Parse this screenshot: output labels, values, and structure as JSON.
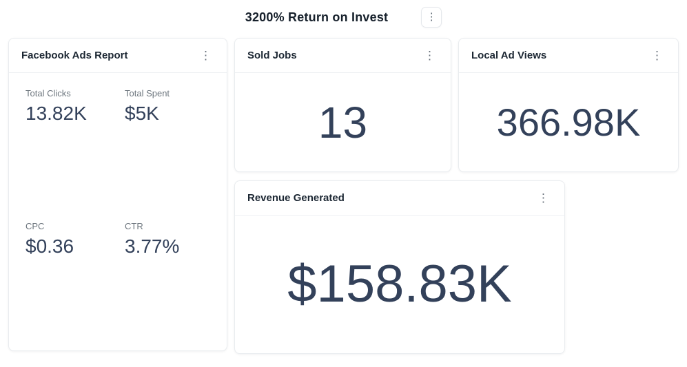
{
  "header": {
    "title": "3200% Return on Invest"
  },
  "icons": {
    "kebab": "⋮"
  },
  "cards": {
    "facebook": {
      "title": "Facebook Ads Report",
      "metrics": [
        {
          "label": "Total Clicks",
          "value": "13.82K"
        },
        {
          "label": "Total Spent",
          "value": "$5K"
        },
        {
          "label": "CPC",
          "value": "$0.36"
        },
        {
          "label": "CTR",
          "value": "3.77%"
        }
      ]
    },
    "sold_jobs": {
      "title": "Sold Jobs",
      "value": "13"
    },
    "local_ad_views": {
      "title": "Local Ad Views",
      "value": "366.98K"
    },
    "revenue": {
      "title": "Revenue Generated",
      "value": "$158.83K"
    }
  },
  "colors": {
    "stat_value": "#33415a",
    "metric_label": "#6c757d",
    "card_title": "#1c2733",
    "card_border": "#e9ecef"
  }
}
